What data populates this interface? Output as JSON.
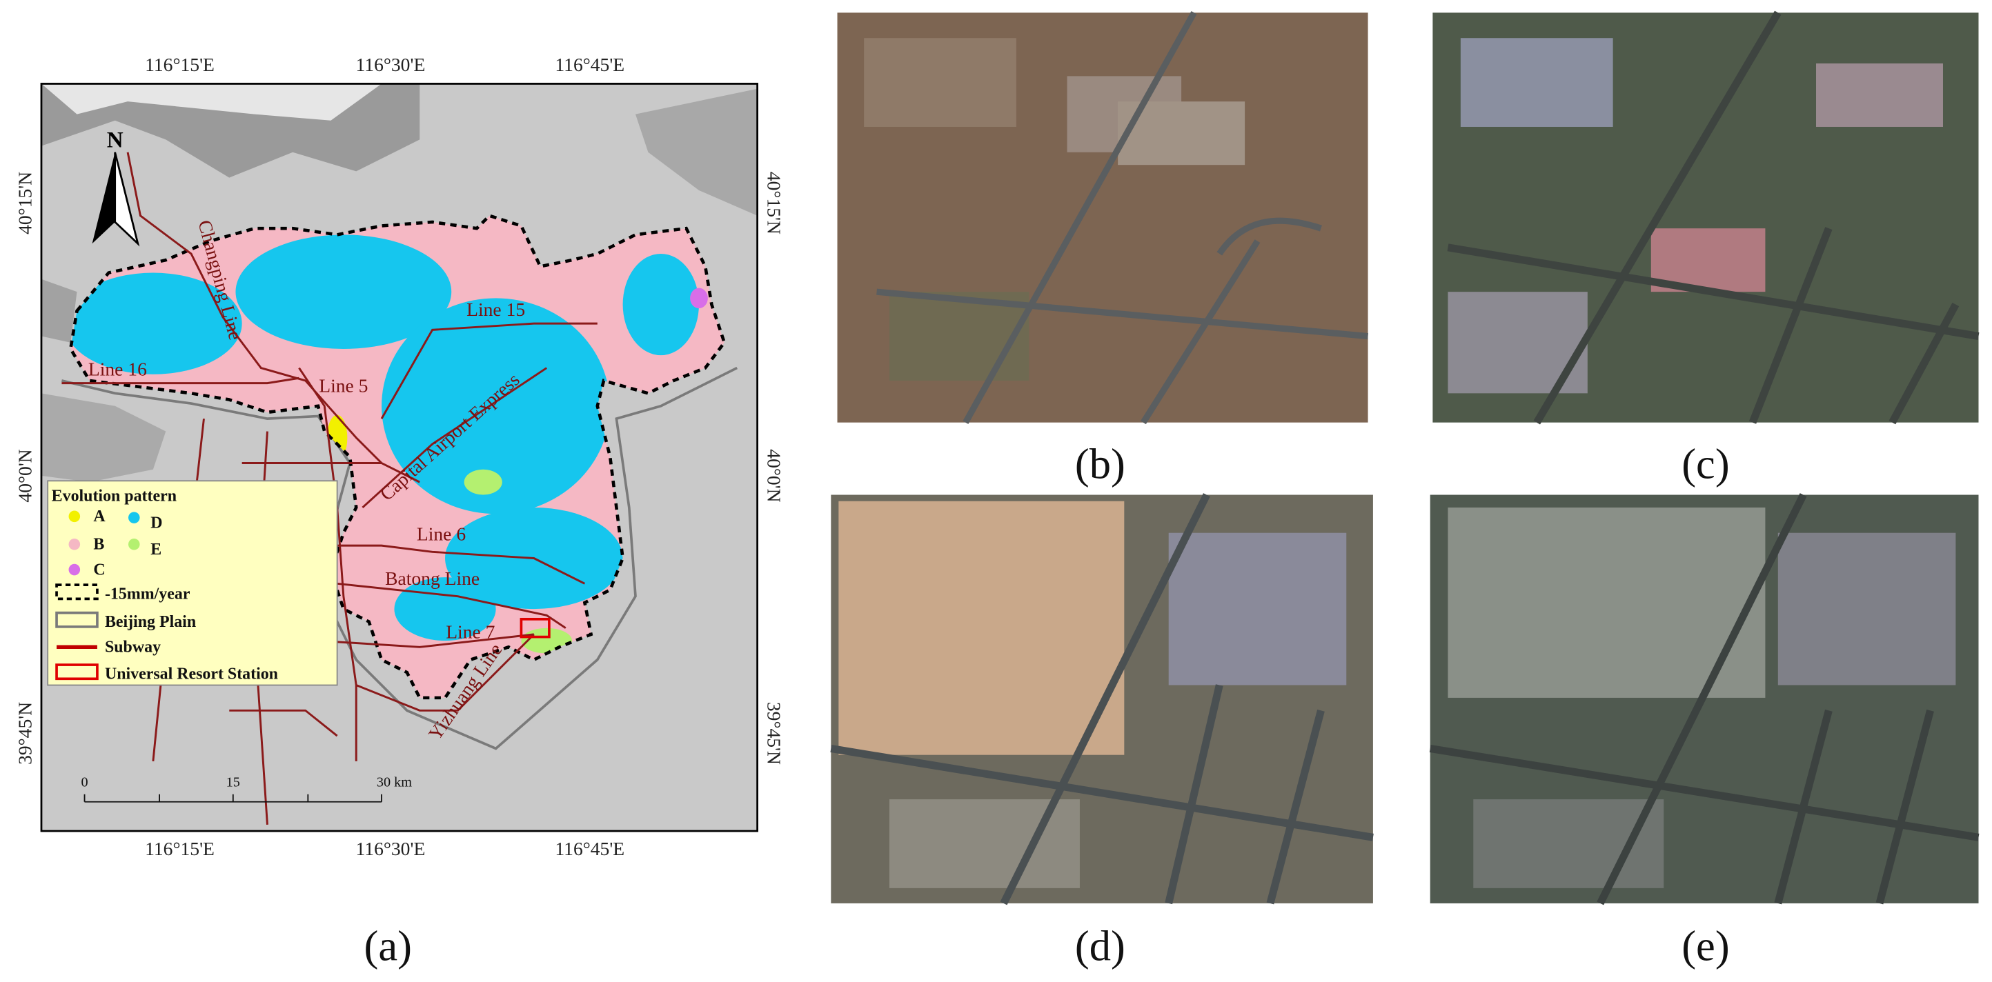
{
  "map": {
    "top_labels": [
      "116°15'E",
      "116°30'E",
      "116°45'E"
    ],
    "bottom_labels": [
      "116°15'E",
      "116°30'E",
      "116°45'E"
    ],
    "left_labels": [
      "40°15'N",
      "40°0'N",
      "39°45'N"
    ],
    "right_labels": [
      "40°15'N",
      "40°0'N",
      "39°45'N"
    ],
    "north": "N",
    "subway_lines": [
      "Changping Line",
      "Line 15",
      "Line 16",
      "Line 5",
      "Capital Airport Express",
      "Line 6",
      "Batong Line",
      "Line 7",
      "Yizhuang Line"
    ],
    "scale_labels": [
      "0",
      "15",
      "30 km"
    ],
    "legend": {
      "title": "Evolution pattern",
      "patterns": [
        {
          "label": "A",
          "color": "#f2f000"
        },
        {
          "label": "B",
          "color": "#f5b8c4"
        },
        {
          "label": "C",
          "color": "#d86ee8"
        },
        {
          "label": "D",
          "color": "#16c6ee"
        },
        {
          "label": "E",
          "color": "#b4f070"
        }
      ],
      "items": [
        "-15mm/year",
        "Beijing Plain",
        "Subway",
        "Universal Resort Station"
      ]
    }
  },
  "panels": [
    "(a)",
    "(b)",
    "(c)",
    "(d)",
    "(e)"
  ]
}
